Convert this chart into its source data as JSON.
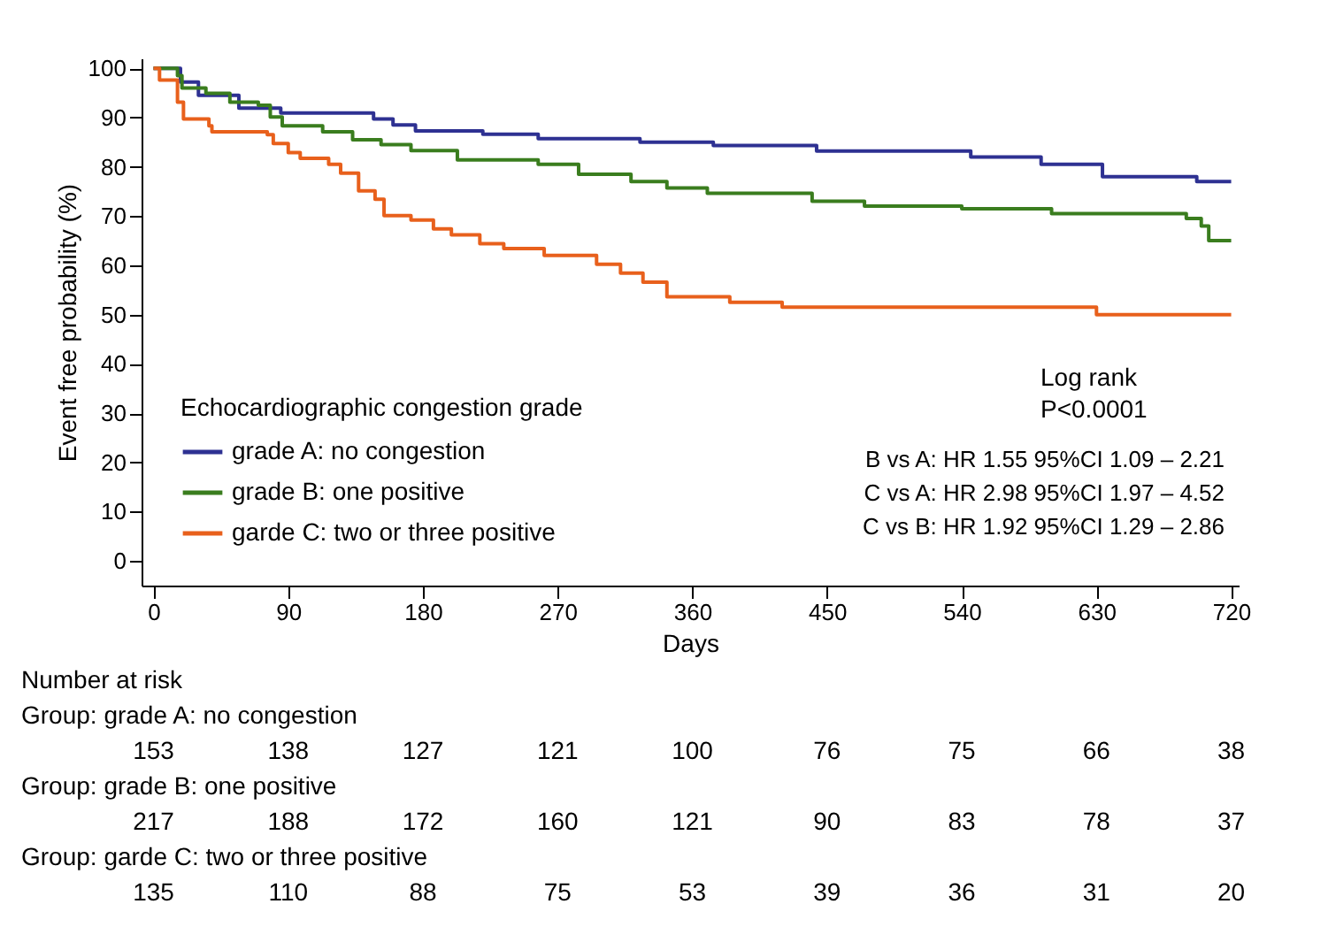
{
  "chart_data": [
    {
      "type": "step",
      "xlabel": "Days",
      "ylabel": "Event free probability (%)",
      "legend_title": "Echocardiographic congestion grade",
      "legend": "bottom left",
      "grid": false,
      "xlim": [
        -8,
        725
      ],
      "ylim": [
        -5,
        102
      ],
      "xticks": [
        0,
        90,
        180,
        270,
        360,
        450,
        540,
        630,
        720
      ],
      "yticks": [
        0,
        10,
        20,
        30,
        40,
        50,
        60,
        70,
        80,
        90,
        100
      ],
      "series": [
        {
          "name": "grade A: no congestion",
          "color": "#2e3192",
          "x": [
            0,
            18,
            30,
            57,
            85,
            147,
            160,
            175,
            220,
            257,
            325,
            374,
            443,
            546,
            593,
            634,
            697,
            720
          ],
          "values": [
            100,
            97.2,
            94.5,
            91.9,
            90.9,
            89.7,
            88.5,
            87.3,
            86.6,
            85.7,
            85,
            84.3,
            83.2,
            82,
            80.5,
            78,
            77,
            77
          ]
        },
        {
          "name": "grade B: one positive",
          "color": "#3a7d1e",
          "x": [
            0,
            16,
            19,
            35,
            51,
            70,
            78,
            86,
            113,
            133,
            152,
            172,
            203,
            257,
            284,
            319,
            343,
            370,
            440,
            475,
            540,
            600,
            690,
            700,
            705,
            720
          ],
          "values": [
            100,
            98.5,
            96,
            94.9,
            93.1,
            92.5,
            90.1,
            88.3,
            87.1,
            85.5,
            84.5,
            83.3,
            81.4,
            80.5,
            78.5,
            77,
            75.7,
            74.6,
            73,
            72,
            71.5,
            70.5,
            69.5,
            68,
            65,
            65
          ]
        },
        {
          "name": "garde C: two or three positive",
          "color": "#e8601c",
          "x": [
            0,
            4,
            16,
            20,
            37,
            39,
            76,
            80,
            90,
            98,
            117,
            125,
            137,
            148,
            154,
            172,
            187,
            199,
            218,
            234,
            261,
            296,
            312,
            327,
            343,
            385,
            420,
            630,
            720
          ],
          "values": [
            100,
            97.6,
            93.1,
            89.7,
            88.3,
            87.1,
            86.5,
            84.7,
            82.9,
            81.7,
            80.5,
            78.7,
            75.1,
            73.4,
            70.1,
            69.2,
            67.4,
            66.2,
            64.4,
            63.4,
            62,
            60.2,
            58.4,
            56.6,
            53.6,
            52.5,
            51.5,
            50,
            50
          ]
        }
      ],
      "annotations": [
        "Log rank",
        "P<0.0001",
        "B vs A: HR 1.55 95%CI 1.09 – 2.21",
        "C vs A: HR 2.98 95%CI 1.97 – 4.52",
        "C vs B: HR 1.92 95%CI 1.29 – 2.86"
      ]
    },
    {
      "type": "other",
      "title": "Number at risk",
      "y_categories": [
        "Group: grade A: no congestion",
        "Group: grade B: one positive",
        "Group: garde C: two or three positive"
      ],
      "annotations": [
        "153",
        "138",
        "127",
        "121",
        "100",
        "76",
        "75",
        "66",
        "38",
        "217",
        "188",
        "172",
        "160",
        "121",
        "90",
        "83",
        "78",
        "37",
        "135",
        "110",
        "88",
        "75",
        "53",
        "39",
        "36",
        "31",
        "20"
      ]
    }
  ]
}
